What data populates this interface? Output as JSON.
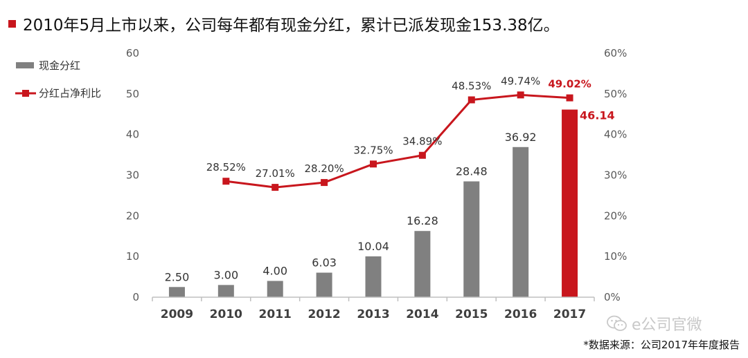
{
  "headline": "2010年5月上市以来，公司每年都有现金分红，累计已派发现金153.38亿。",
  "source_note": "*数据来源：公司2017年年度报告",
  "watermark": "e公司官微",
  "colors": {
    "accent": "#c8161d",
    "bar": "#808080",
    "text": "#111111",
    "axis_label": "#595959",
    "watermark": "#c8c8c8"
  },
  "chart_data": {
    "type": "bar",
    "categories": [
      "2009",
      "2010",
      "2011",
      "2012",
      "2013",
      "2014",
      "2015",
      "2016",
      "2017"
    ],
    "series": [
      {
        "name": "现金分红",
        "type": "bar",
        "axis": "left",
        "values": [
          2.5,
          3.0,
          4.0,
          6.03,
          10.04,
          16.28,
          28.48,
          36.92,
          46.14
        ],
        "labels": [
          "2.50",
          "3.00",
          "4.00",
          "6.03",
          "10.04",
          "16.28",
          "28.48",
          "36.92",
          "46.14"
        ],
        "highlight_index": 8
      },
      {
        "name": "分红占净利比",
        "type": "line",
        "axis": "right",
        "values": [
          null,
          28.52,
          27.01,
          28.2,
          32.75,
          34.89,
          48.53,
          49.74,
          49.02
        ],
        "labels": [
          "",
          "28.52%",
          "27.01%",
          "28.20%",
          "32.75%",
          "34.89%",
          "48.53%",
          "49.74%",
          "49.02%"
        ],
        "highlight_index": 8
      }
    ],
    "y_left": {
      "min": 0,
      "max": 60,
      "ticks": [
        "0",
        "10",
        "20",
        "30",
        "40",
        "50",
        "60"
      ]
    },
    "y_right": {
      "min": 0,
      "max": 60,
      "ticks": [
        "0%",
        "10%",
        "20%",
        "30%",
        "40%",
        "50%",
        "60%"
      ]
    },
    "grid": false,
    "legend": {
      "position": "top-left"
    }
  }
}
